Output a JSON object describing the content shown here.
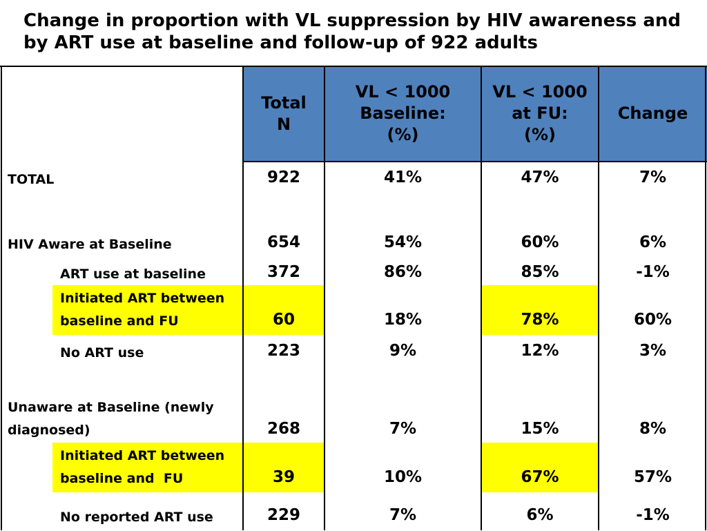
{
  "title": {
    "line1": "Change in proportion with VL suppression by HIV awareness and",
    "line2": "by ART use at baseline and follow-up of 922 adults"
  },
  "header": {
    "total_n": [
      "Total",
      "N"
    ],
    "vl_baseline": [
      "VL < 1000",
      "Baseline:",
      "(%)"
    ],
    "vl_fu": [
      "VL < 1000",
      "at FU:",
      "(%)"
    ],
    "change": "Change"
  },
  "colors": {
    "header_bg": "#4f81bd",
    "highlight": "#ffff00"
  },
  "rows": [
    {
      "label": "TOTAL",
      "total_n": "922",
      "vl_baseline": "41%",
      "vl_fu": "47%",
      "change": "7%"
    },
    {
      "label": "HIV Aware at Baseline",
      "total_n": "654",
      "vl_baseline": "54%",
      "vl_fu": "60%",
      "change": "6%"
    },
    {
      "label": "ART use at baseline",
      "total_n": "372",
      "vl_baseline": "86%",
      "vl_fu": "85%",
      "change": "-1%"
    },
    {
      "label_lines": [
        "Initiated ART between",
        "baseline and FU"
      ],
      "total_n": "60",
      "vl_baseline": "18%",
      "vl_fu": "78%",
      "change": "60%",
      "highlighted": true
    },
    {
      "label": "No ART use",
      "total_n": "223",
      "vl_baseline": "9%",
      "vl_fu": "12%",
      "change": "3%"
    },
    {
      "label_lines": [
        "Unaware at Baseline (newly",
        "diagnosed)"
      ],
      "total_n": "268",
      "vl_baseline": "7%",
      "vl_fu": "15%",
      "change": "8%"
    },
    {
      "label_lines": [
        "Initiated ART between",
        "baseline and  FU"
      ],
      "total_n": "39",
      "vl_baseline": "10%",
      "vl_fu": "67%",
      "change": "57%",
      "highlighted": true
    },
    {
      "label": "No reported ART use",
      "total_n": "229",
      "vl_baseline": "7%",
      "vl_fu": "6%",
      "change": "-1%"
    }
  ]
}
